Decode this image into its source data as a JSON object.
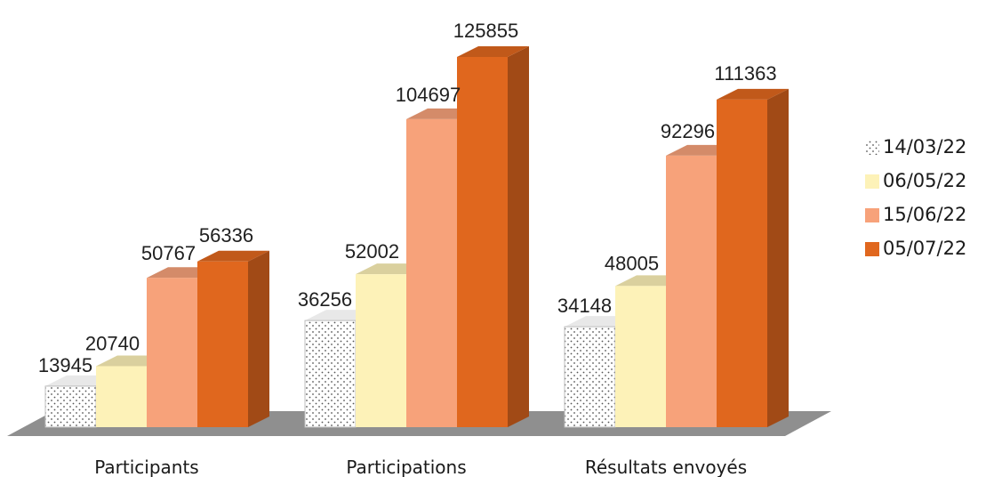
{
  "chart_data": {
    "type": "bar",
    "title": "",
    "xlabel": "",
    "ylabel": "",
    "categories": [
      "Participants",
      "Participations",
      "Résultats envoyés"
    ],
    "series": [
      {
        "name": "14/03/22",
        "values": [
          13945,
          36256,
          34148
        ],
        "color": "#ffffff",
        "pattern": "dots"
      },
      {
        "name": "06/05/22",
        "values": [
          20740,
          52002,
          48005
        ],
        "color": "#fdf2b8"
      },
      {
        "name": "15/06/22",
        "values": [
          50767,
          104697,
          92296
        ],
        "color": "#f7a27a"
      },
      {
        "name": "05/07/22",
        "values": [
          56336,
          125855,
          111363
        ],
        "color": "#e0671e"
      }
    ],
    "ylim": [
      0,
      130000
    ],
    "grid": false,
    "legend_position": "right",
    "style": "3d-clustered-column"
  }
}
